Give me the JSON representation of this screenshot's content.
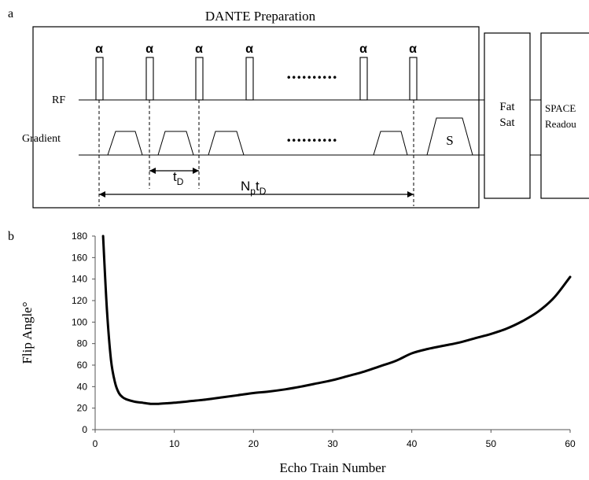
{
  "panel_a": {
    "label": "a",
    "title": "DANTE Preparation",
    "rf_label": "RF",
    "gradient_label": "Gradient",
    "pulse_symbol": "α",
    "pulse_count_visible": 6,
    "spoiler_label": "S",
    "td_label_base": "t",
    "td_label_sub": "D",
    "nptd_label_N": "N",
    "nptd_label_p": "p",
    "nptd_label_t": "t",
    "nptd_label_D": "D",
    "ellipsis": "..........",
    "fat_sat_line1": "Fat",
    "fat_sat_line2": "Sat",
    "space_line1": "SPACE",
    "space_line2": "Readou"
  },
  "panel_b": {
    "label": "b"
  },
  "chart_data": {
    "type": "line",
    "title": "",
    "xlabel": "Echo Train Number",
    "ylabel": "Flip Angle°",
    "xlim": [
      0,
      60
    ],
    "ylim": [
      0,
      180
    ],
    "xticks": [
      0,
      10,
      20,
      30,
      40,
      50,
      60
    ],
    "yticks": [
      0,
      20,
      40,
      60,
      80,
      100,
      120,
      140,
      160,
      180
    ],
    "grid": false,
    "series": [
      {
        "name": "",
        "color": "#000000",
        "x": [
          1,
          1.5,
          2,
          2.5,
          3,
          3.5,
          4,
          5,
          6,
          7,
          8,
          9,
          10,
          12,
          14,
          16,
          18,
          20,
          22,
          24,
          26,
          28,
          30,
          32,
          34,
          36,
          38,
          40,
          42,
          44,
          46,
          48,
          50,
          52,
          54,
          56,
          58,
          60
        ],
        "y": [
          180,
          110,
          65,
          44,
          34,
          30,
          28,
          26,
          25,
          24,
          24,
          24.5,
          25,
          26.5,
          28,
          30,
          32,
          34,
          35.5,
          37.5,
          40,
          43,
          46,
          50,
          54,
          59,
          64,
          71,
          75,
          78,
          81,
          85,
          89,
          94,
          101,
          110,
          123,
          142
        ]
      }
    ]
  }
}
